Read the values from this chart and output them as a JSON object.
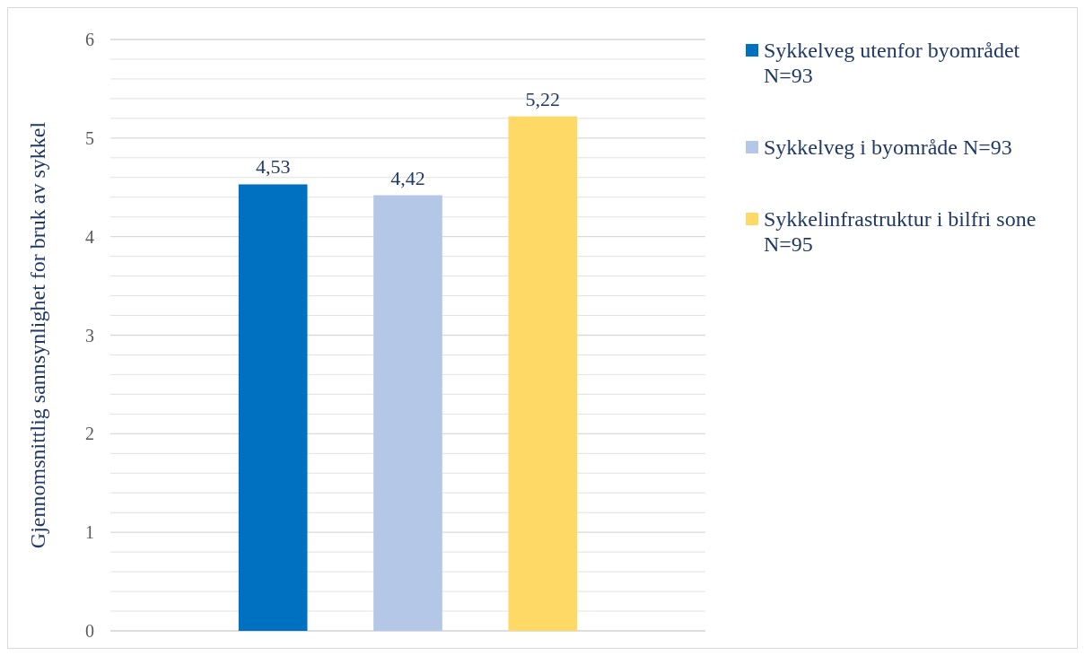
{
  "chart_data": {
    "type": "bar",
    "ylabel": "Gjennomsnittlig sannsynlighet for bruk av sykkel",
    "categories": [
      null
    ],
    "series": [
      {
        "name": "Sykkelveg utenfor byområdet N=93",
        "color": "#0070c0",
        "values": [
          4.53
        ],
        "value_labels": [
          "4,53"
        ]
      },
      {
        "name": "Sykkelveg i byområde N=93",
        "color": "#b4c7e7",
        "values": [
          4.42
        ],
        "value_labels": [
          "4,42"
        ]
      },
      {
        "name": "Sykkelinfrastruktur i bilfri sone N=95",
        "color": "#ffd966",
        "values": [
          5.22
        ],
        "value_labels": [
          "5,22"
        ]
      }
    ],
    "ylim": [
      0,
      6
    ],
    "yticks": [
      0,
      {
        "value": 0.2,
        "label": null
      },
      {
        "value": 0.4,
        "label": null
      },
      {
        "value": 0.6,
        "label": null
      },
      {
        "value": 0.8,
        "label": null
      },
      1,
      {
        "value": 1.2,
        "label": null
      },
      {
        "value": 1.4,
        "label": null
      },
      {
        "value": 1.6,
        "label": null
      },
      {
        "value": 1.8,
        "label": null
      },
      2,
      {
        "value": 2.2,
        "label": null
      },
      {
        "value": 2.4,
        "label": null
      },
      {
        "value": 2.6,
        "label": null
      },
      {
        "value": 2.8,
        "label": null
      },
      3,
      {
        "value": 3.2,
        "label": null
      },
      {
        "value": 3.4,
        "label": null
      },
      {
        "value": 3.6,
        "label": null
      },
      {
        "value": 3.8,
        "label": null
      },
      4,
      {
        "value": 4.2,
        "label": null
      },
      {
        "value": 4.4,
        "label": null
      },
      {
        "value": 4.6,
        "label": null
      },
      {
        "value": 4.8,
        "label": null
      },
      5,
      {
        "value": 5.2,
        "label": null
      },
      {
        "value": 5.4,
        "label": null
      },
      {
        "value": 5.6,
        "label": null
      },
      {
        "value": 5.8,
        "label": null
      },
      6
    ],
    "grid": "y",
    "legend": "right"
  }
}
